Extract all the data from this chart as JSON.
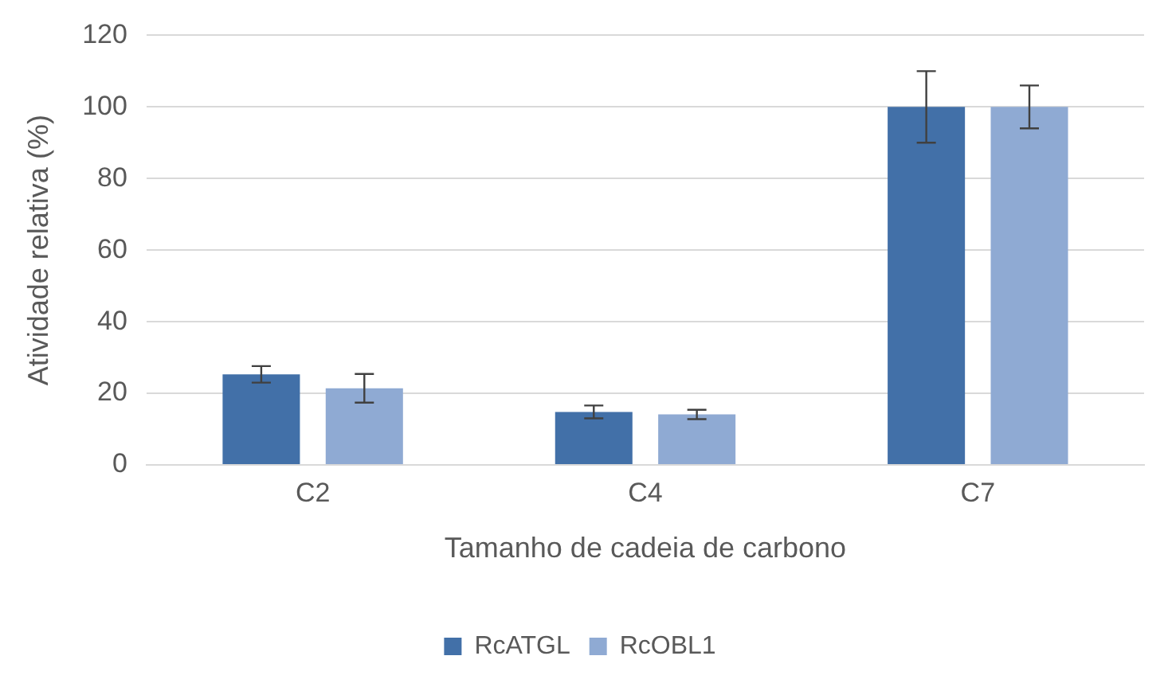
{
  "chart_data": {
    "type": "bar",
    "xlabel": "Tamanho de cadeia de carbono",
    "ylabel": "Atividade relativa (%)",
    "categories": [
      "C2",
      "C4",
      "C7"
    ],
    "series": [
      {
        "name": "RcATGL",
        "color": "#4270a8",
        "values": [
          25.3,
          14.8,
          100
        ],
        "errors": [
          2.3,
          1.8,
          10
        ]
      },
      {
        "name": "RcOBL1",
        "color": "#8faad3",
        "values": [
          21.4,
          14.1,
          100
        ],
        "errors": [
          4,
          1.3,
          6
        ]
      }
    ],
    "ylim": [
      0,
      120
    ],
    "yticks": [
      0,
      20,
      40,
      60,
      80,
      100,
      120
    ],
    "grid": "y",
    "legend": "bottom"
  }
}
